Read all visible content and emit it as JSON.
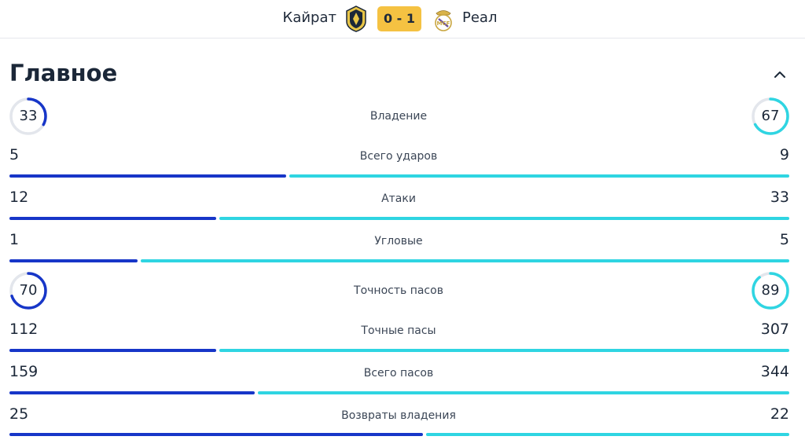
{
  "match": {
    "home_team": "Кайрат",
    "away_team": "Реал",
    "score": "0 - 1"
  },
  "colors": {
    "home": "#1736c8",
    "away": "#2fd5e2",
    "score_badge": "#f5c242"
  },
  "section": {
    "title": "Главное"
  },
  "stats": [
    {
      "label": "Владение",
      "home": 33,
      "away": 67,
      "display": "ring"
    },
    {
      "label": "Всего ударов",
      "home": 5,
      "away": 9,
      "display": "bar"
    },
    {
      "label": "Атаки",
      "home": 12,
      "away": 33,
      "display": "bar"
    },
    {
      "label": "Угловые",
      "home": 1,
      "away": 5,
      "display": "bar"
    },
    {
      "label": "Точность пасов",
      "home": 70,
      "away": 89,
      "display": "ring"
    },
    {
      "label": "Точные пасы",
      "home": 112,
      "away": 307,
      "display": "bar"
    },
    {
      "label": "Всего пасов",
      "home": 159,
      "away": 344,
      "display": "bar"
    },
    {
      "label": "Возвраты владения",
      "home": 25,
      "away": 22,
      "display": "bar"
    }
  ]
}
